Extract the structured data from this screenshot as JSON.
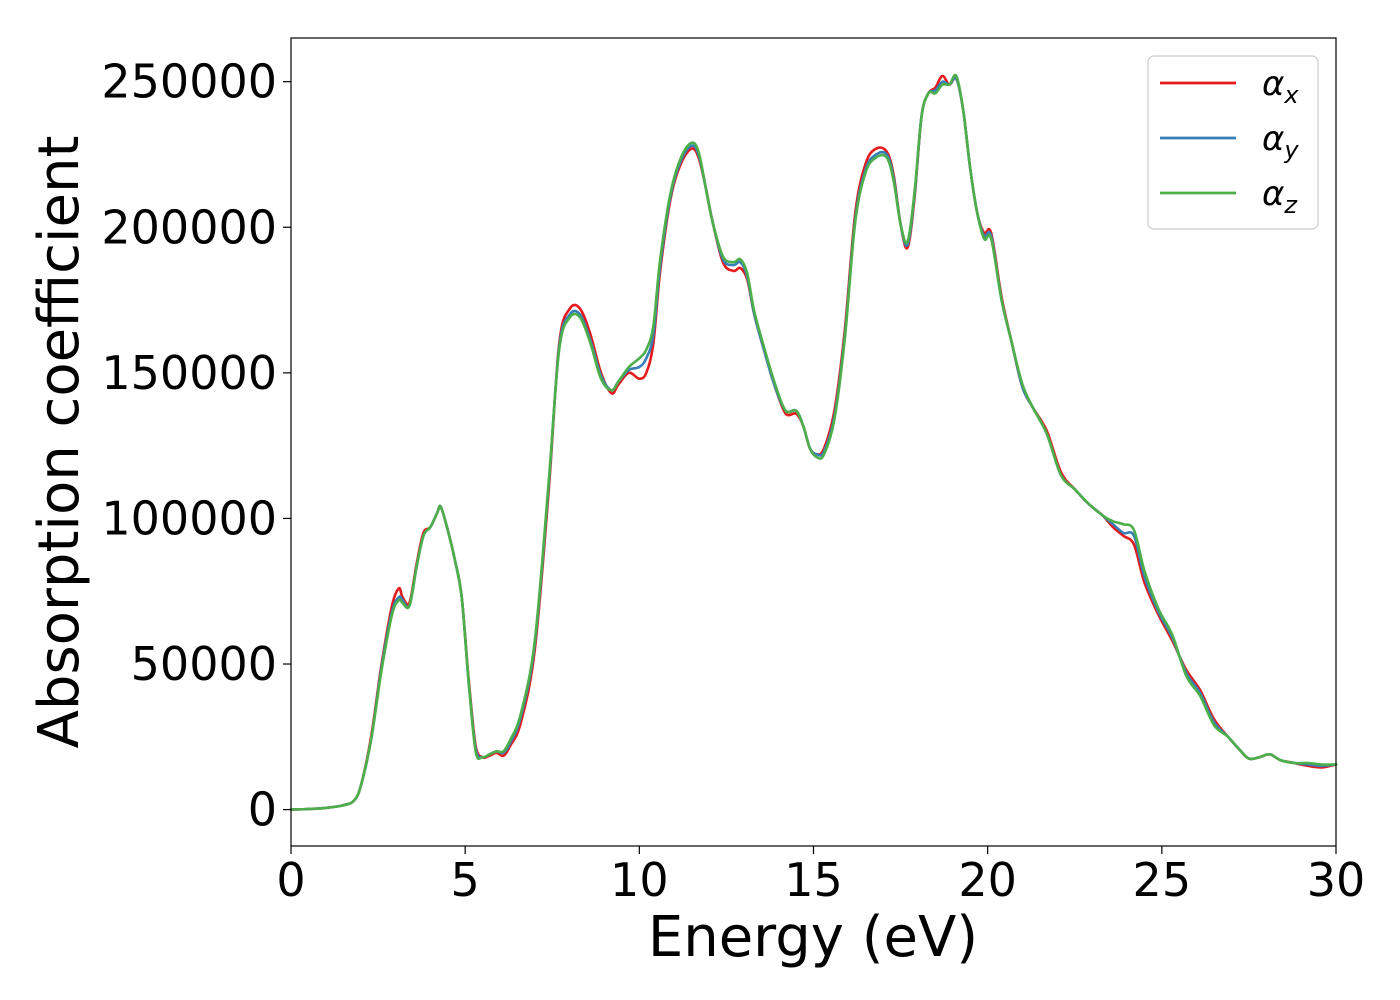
{
  "chart_data": {
    "type": "line",
    "xlabel": "Energy (eV)",
    "ylabel": "Absorption coefficient",
    "xlim": [
      0,
      30
    ],
    "ylim": [
      -12500,
      265000
    ],
    "xticks": [
      0,
      5,
      10,
      15,
      20,
      25,
      30
    ],
    "yticks": [
      0,
      50000,
      100000,
      150000,
      200000,
      250000
    ],
    "grid": false,
    "legend_position": "top-right",
    "x": [
      0,
      0.5,
      1.0,
      1.5,
      1.8,
      2.0,
      2.3,
      2.6,
      2.9,
      3.1,
      3.2,
      3.4,
      3.6,
      3.8,
      4.0,
      4.2,
      4.3,
      4.5,
      4.7,
      4.9,
      5.1,
      5.3,
      5.5,
      5.7,
      5.9,
      6.1,
      6.3,
      6.6,
      7.0,
      7.4,
      7.7,
      8.0,
      8.3,
      8.6,
      8.9,
      9.2,
      9.4,
      9.7,
      10.0,
      10.2,
      10.4,
      10.6,
      10.9,
      11.2,
      11.5,
      11.7,
      11.9,
      12.1,
      12.4,
      12.7,
      12.9,
      13.1,
      13.3,
      13.6,
      13.9,
      14.2,
      14.5,
      14.7,
      14.9,
      15.1,
      15.3,
      15.6,
      15.9,
      16.2,
      16.5,
      16.8,
      17.1,
      17.3,
      17.5,
      17.7,
      17.9,
      18.1,
      18.3,
      18.5,
      18.7,
      18.9,
      19.1,
      19.3,
      19.5,
      19.7,
      19.9,
      20.1,
      20.4,
      20.7,
      21.0,
      21.3,
      21.7,
      22.1,
      22.5,
      22.9,
      23.3,
      23.6,
      23.9,
      24.2,
      24.5,
      24.9,
      25.3,
      25.7,
      26.1,
      26.5,
      26.9,
      27.2,
      27.5,
      27.8,
      28.1,
      28.4,
      28.8,
      29.2,
      29.6,
      30.0
    ],
    "series": [
      {
        "name": "α",
        "subscript": "x",
        "color": "#e41a1c",
        "values": [
          0,
          200,
          600,
          1500,
          3000,
          8000,
          25000,
          50000,
          70000,
          76000,
          73000,
          71000,
          84000,
          95000,
          97000,
          102000,
          104000,
          96000,
          86000,
          73000,
          45000,
          22000,
          18000,
          18500,
          19500,
          18500,
          22000,
          30000,
          55000,
          110000,
          160000,
          172000,
          172000,
          163000,
          150000,
          143000,
          146000,
          150000,
          148000,
          150000,
          160000,
          185000,
          210000,
          222000,
          227000,
          224000,
          214000,
          202000,
          188000,
          185000,
          186000,
          182000,
          170000,
          157000,
          145000,
          136000,
          136000,
          132000,
          124000,
          122000,
          124000,
          137000,
          165000,
          205000,
          222000,
          227000,
          226000,
          218000,
          201000,
          193000,
          210000,
          238000,
          246000,
          248000,
          252000,
          249000,
          251000,
          240000,
          220000,
          205000,
          198000,
          198000,
          176000,
          160000,
          145000,
          138000,
          130000,
          116000,
          110000,
          105000,
          101000,
          97000,
          94000,
          91000,
          78000,
          67000,
          58000,
          48000,
          41000,
          31000,
          25000,
          21000,
          17500,
          18000,
          19000,
          17000,
          16000,
          15000,
          14500,
          15500
        ]
      },
      {
        "name": "α",
        "subscript": "y",
        "color": "#377eb8",
        "values": [
          0,
          200,
          600,
          1500,
          3000,
          8000,
          24000,
          49000,
          68000,
          73000,
          72000,
          70000,
          83000,
          94000,
          97000,
          102000,
          104000,
          96000,
          86000,
          73000,
          44000,
          21000,
          18000,
          19000,
          20000,
          19500,
          23000,
          32000,
          57000,
          112000,
          159000,
          170000,
          170000,
          161000,
          149000,
          144000,
          147000,
          151000,
          152000,
          155000,
          163000,
          187000,
          211000,
          223000,
          228000,
          225000,
          214000,
          202000,
          189000,
          187000,
          188000,
          183000,
          170000,
          157000,
          145000,
          137000,
          137000,
          132000,
          124000,
          122000,
          123000,
          135000,
          163000,
          203000,
          220000,
          225000,
          225000,
          217000,
          201000,
          194000,
          211000,
          238000,
          246000,
          247000,
          250000,
          249000,
          251000,
          240000,
          220000,
          205000,
          197000,
          197000,
          175000,
          160000,
          145000,
          138000,
          129000,
          115000,
          110000,
          105000,
          101000,
          98000,
          95000,
          94000,
          80000,
          68000,
          59000,
          47000,
          40000,
          30000,
          25000,
          21000,
          17500,
          18000,
          19000,
          17000,
          16000,
          15500,
          15000,
          15500
        ]
      },
      {
        "name": "α",
        "subscript": "z",
        "color": "#4daf4a",
        "values": [
          0,
          200,
          600,
          1500,
          3000,
          8000,
          24000,
          48000,
          67000,
          72000,
          71000,
          70000,
          83000,
          94000,
          97000,
          102000,
          104000,
          96000,
          86000,
          73000,
          44000,
          20000,
          18000,
          19000,
          20000,
          20000,
          24000,
          33000,
          58000,
          113000,
          158000,
          169000,
          169000,
          160000,
          148000,
          144000,
          147000,
          152000,
          155000,
          158000,
          166000,
          189000,
          212000,
          224000,
          229000,
          226000,
          214000,
          202000,
          190000,
          188000,
          189000,
          184000,
          171000,
          158000,
          146000,
          137000,
          137000,
          132000,
          124000,
          121000,
          122000,
          134000,
          162000,
          202000,
          219000,
          224000,
          224000,
          216000,
          201000,
          195000,
          212000,
          238000,
          246000,
          246000,
          249000,
          249000,
          252000,
          240000,
          220000,
          205000,
          196000,
          196000,
          175000,
          160000,
          146000,
          138000,
          129000,
          115000,
          110000,
          105000,
          101000,
          99000,
          98000,
          96000,
          82000,
          69000,
          60000,
          46000,
          39000,
          29000,
          25000,
          21000,
          17500,
          18000,
          19000,
          17000,
          16000,
          16000,
          15500,
          15500
        ]
      }
    ]
  }
}
